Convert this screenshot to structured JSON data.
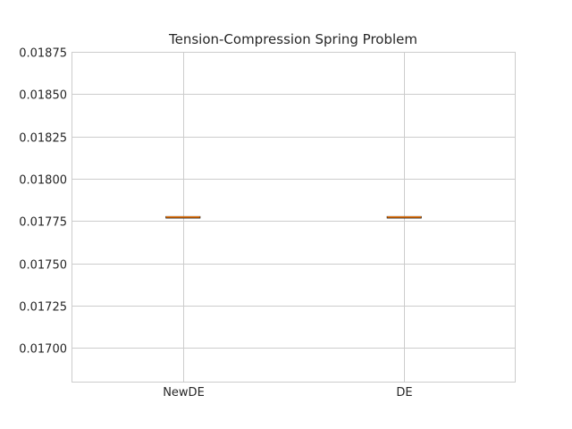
{
  "chart_data": {
    "type": "box",
    "title": "Tension-Compression Spring Problem",
    "xlabel": "",
    "ylabel": "",
    "categories": [
      "NewDE",
      "DE"
    ],
    "series": [
      {
        "category": "NewDE",
        "min": 0.017773,
        "q1": 0.017773,
        "median": 0.017773,
        "q3": 0.017773,
        "max": 0.017773
      },
      {
        "category": "DE",
        "min": 0.017773,
        "q1": 0.017773,
        "median": 0.017773,
        "q3": 0.017773,
        "max": 0.017773
      }
    ],
    "ylim": [
      0.0168,
      0.01875
    ],
    "yticks": [
      0.017,
      0.01725,
      0.0175,
      0.01775,
      0.018,
      0.01825,
      0.0185,
      0.01875
    ],
    "ytick_labels": [
      "0.01700",
      "0.01725",
      "0.01750",
      "0.01775",
      "0.01800",
      "0.01825",
      "0.01850",
      "0.01875"
    ],
    "grid": true,
    "colors": {
      "grid": "#cccccc",
      "spine": "#cccccc",
      "box": "#000000",
      "median": "#ff7f0e",
      "text": "#262626"
    }
  }
}
